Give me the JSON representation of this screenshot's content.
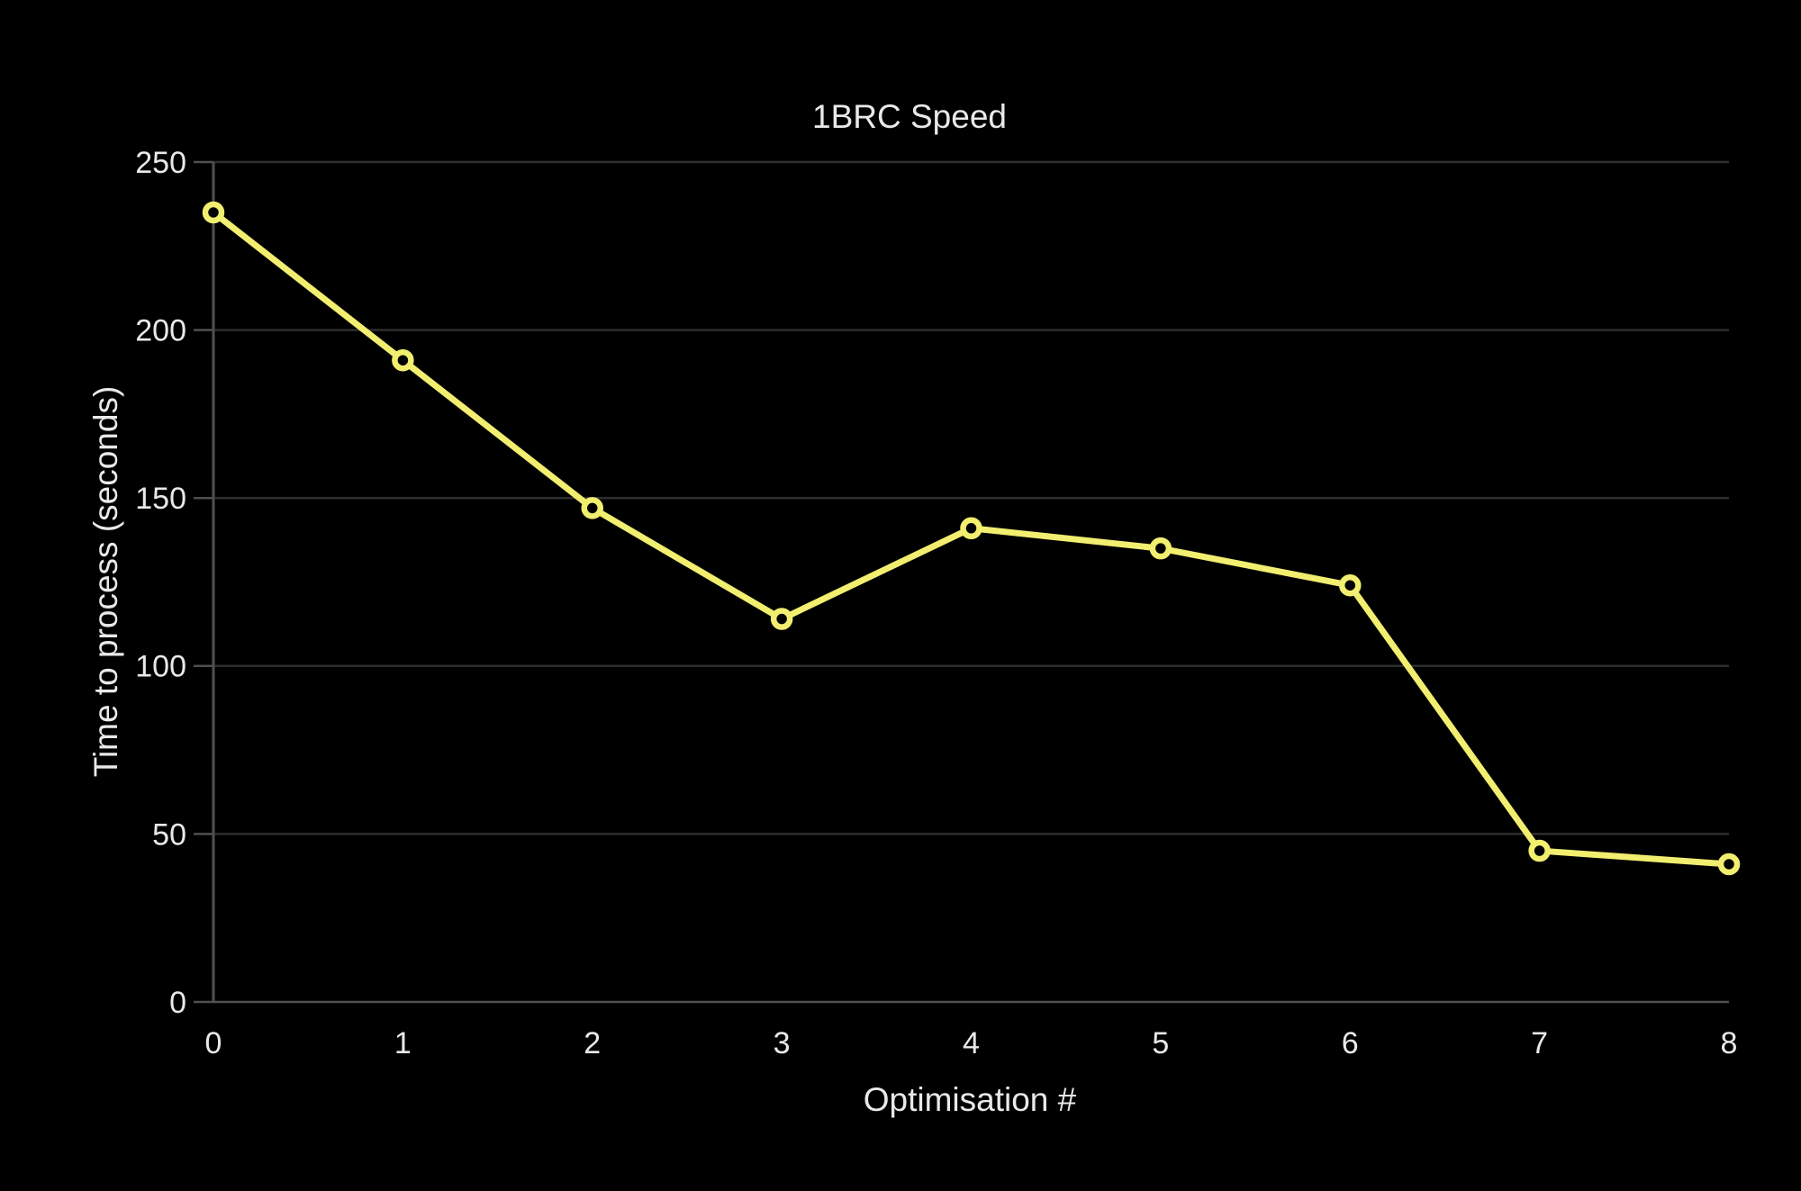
{
  "chart_data": {
    "type": "line",
    "title": "1BRC Speed",
    "xlabel": "Optimisation #",
    "ylabel": "Time to process (seconds)",
    "x": [
      0,
      1,
      2,
      3,
      4,
      5,
      6,
      7,
      8
    ],
    "values": [
      235,
      191,
      147,
      114,
      141,
      135,
      124,
      45,
      41
    ],
    "x_ticks": [
      0,
      1,
      2,
      3,
      4,
      5,
      6,
      7,
      8
    ],
    "y_ticks": [
      0,
      50,
      100,
      150,
      200,
      250
    ],
    "xlim": [
      0,
      8
    ],
    "ylim": [
      0,
      250
    ],
    "grid": "horizontal",
    "legend": "none",
    "marker": "open-circle",
    "colors": {
      "line": "#f2ee6f",
      "background": "#000000",
      "text": "#e9e9e9",
      "gridline": "#2e2e2e",
      "axis": "#4f4f4f"
    }
  }
}
